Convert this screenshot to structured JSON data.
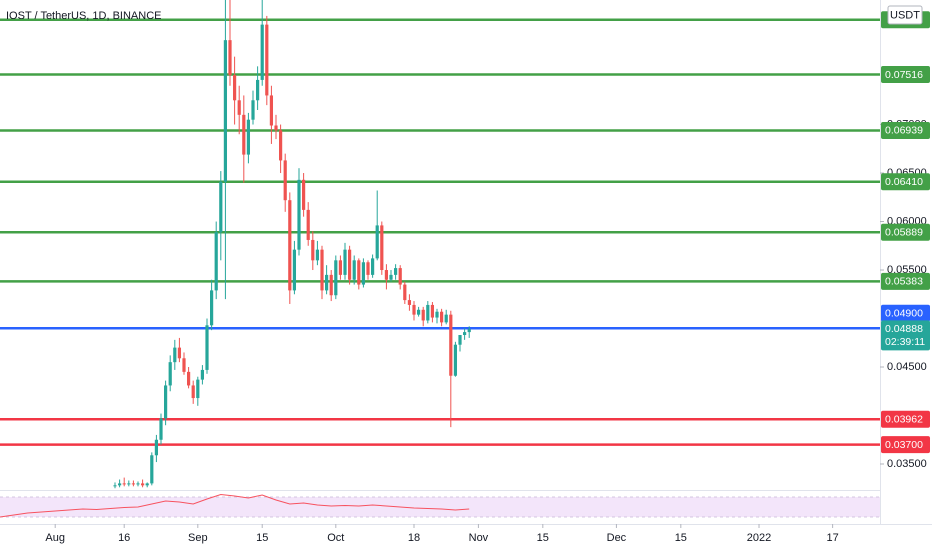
{
  "chart_data": {
    "type": "candlestick",
    "title": "IOST / TetherUS, 1D, BINANCE",
    "currency": "USDT",
    "up_color": "#26a69a",
    "down_color": "#ef5350",
    "x": [
      13,
      14,
      15,
      16,
      17,
      18,
      19,
      20,
      21,
      22,
      23,
      24,
      25,
      26,
      27,
      28,
      29,
      30,
      31,
      32,
      33,
      34,
      35,
      36,
      37,
      38,
      39,
      40,
      41,
      42,
      43,
      44,
      45,
      46,
      47,
      48,
      49,
      50,
      51,
      52,
      53,
      54,
      55,
      56,
      57,
      58,
      59,
      60,
      61,
      62,
      63,
      64,
      65,
      66,
      67,
      68,
      69,
      70,
      71,
      72,
      73,
      74,
      75,
      76,
      77,
      78,
      79,
      80,
      81,
      82,
      83,
      84,
      85,
      86,
      87,
      88,
      89,
      90
    ],
    "open": [
      0.0327,
      0.0328,
      0.033,
      0.0329,
      0.033,
      0.0329,
      0.033,
      0.0328,
      0.033,
      0.0359,
      0.0375,
      0.0397,
      0.0431,
      0.0455,
      0.047,
      0.0459,
      0.0445,
      0.0431,
      0.0418,
      0.0437,
      0.0447,
      0.0493,
      0.0529,
      0.0589,
      0.0641,
      0.0787,
      0.0751,
      0.0725,
      0.071,
      0.0669,
      0.0705,
      0.0725,
      0.0746,
      0.0803,
      0.073,
      0.0699,
      0.0694,
      0.0663,
      0.0622,
      0.0529,
      0.0571,
      0.0643,
      0.0612,
      0.0581,
      0.056,
      0.0571,
      0.0529,
      0.0545,
      0.0524,
      0.056,
      0.0545,
      0.0571,
      0.054,
      0.056,
      0.0535,
      0.0558,
      0.0545,
      0.0562,
      0.0596,
      0.055,
      0.054,
      0.0545,
      0.0552,
      0.0535,
      0.0519,
      0.0514,
      0.0504,
      0.0509,
      0.0498,
      0.0514,
      0.0501,
      0.0507,
      0.0496,
      0.0504,
      0.0441,
      0.0473,
      0.0483,
      0.0486
    ],
    "high": [
      0.0331,
      0.0334,
      0.0336,
      0.0333,
      0.0333,
      0.0332,
      0.0334,
      0.0331,
      0.0362,
      0.038,
      0.0402,
      0.0436,
      0.0462,
      0.0478,
      0.048,
      0.0465,
      0.045,
      0.0436,
      0.044,
      0.0452,
      0.05,
      0.054,
      0.06,
      0.0652,
      0.083,
      0.083,
      0.077,
      0.074,
      0.073,
      0.0712,
      0.0735,
      0.076,
      0.083,
      0.0812,
      0.074,
      0.071,
      0.07,
      0.067,
      0.063,
      0.058,
      0.0655,
      0.065,
      0.062,
      0.059,
      0.058,
      0.0575,
      0.0555,
      0.055,
      0.0565,
      0.0565,
      0.0578,
      0.0575,
      0.0565,
      0.0562,
      0.0562,
      0.056,
      0.0566,
      0.0632,
      0.06,
      0.0556,
      0.055,
      0.0556,
      0.0555,
      0.0538,
      0.0525,
      0.0518,
      0.0512,
      0.0512,
      0.0518,
      0.0517,
      0.051,
      0.051,
      0.0509,
      0.0508,
      0.0476,
      0.0478,
      0.049,
      0.0492
    ],
    "low": [
      0.0325,
      0.0326,
      0.0327,
      0.0327,
      0.0327,
      0.0327,
      0.0326,
      0.0326,
      0.0328,
      0.0352,
      0.037,
      0.039,
      0.0425,
      0.0447,
      0.0455,
      0.0442,
      0.0428,
      0.0412,
      0.041,
      0.0432,
      0.0443,
      0.0488,
      0.052,
      0.056,
      0.052,
      0.074,
      0.07,
      0.069,
      0.064,
      0.066,
      0.07,
      0.0715,
      0.074,
      0.072,
      0.068,
      0.0685,
      0.065,
      0.061,
      0.0515,
      0.0525,
      0.0565,
      0.0605,
      0.0575,
      0.055,
      0.0555,
      0.052,
      0.0525,
      0.0518,
      0.052,
      0.054,
      0.054,
      0.0535,
      0.0535,
      0.053,
      0.0532,
      0.054,
      0.0542,
      0.056,
      0.0545,
      0.053,
      0.0538,
      0.054,
      0.053,
      0.0515,
      0.0508,
      0.0498,
      0.0502,
      0.0492,
      0.0495,
      0.0496,
      0.0495,
      0.0492,
      0.0494,
      0.0388,
      0.044,
      0.0466,
      0.0478,
      0.048
    ],
    "close": [
      0.0328,
      0.033,
      0.0329,
      0.033,
      0.0329,
      0.033,
      0.0328,
      0.033,
      0.0359,
      0.0375,
      0.0397,
      0.0431,
      0.0455,
      0.047,
      0.0459,
      0.0445,
      0.0431,
      0.0418,
      0.0437,
      0.0447,
      0.0493,
      0.0529,
      0.0589,
      0.0641,
      0.0787,
      0.0751,
      0.0725,
      0.071,
      0.0669,
      0.0705,
      0.0725,
      0.0746,
      0.0803,
      0.073,
      0.0699,
      0.0694,
      0.0663,
      0.0622,
      0.0529,
      0.0571,
      0.0643,
      0.0612,
      0.0581,
      0.056,
      0.0571,
      0.0529,
      0.0545,
      0.0524,
      0.056,
      0.0545,
      0.0571,
      0.054,
      0.056,
      0.0535,
      0.0558,
      0.0545,
      0.0562,
      0.0596,
      0.055,
      0.054,
      0.0545,
      0.0552,
      0.0535,
      0.0519,
      0.0514,
      0.0504,
      0.0509,
      0.0498,
      0.0514,
      0.0501,
      0.0507,
      0.0496,
      0.0504,
      0.0441,
      0.0473,
      0.0483,
      0.0486,
      0.0489
    ],
    "xlim": [
      -12,
      179.3
    ],
    "xticks": [
      {
        "value": 0,
        "label": "Aug"
      },
      {
        "value": 15,
        "label": "16"
      },
      {
        "value": 31,
        "label": "Sep"
      },
      {
        "value": 45,
        "label": "15"
      },
      {
        "value": 61,
        "label": "Oct"
      },
      {
        "value": 78,
        "label": "18"
      },
      {
        "value": 92,
        "label": "Nov"
      },
      {
        "value": 106,
        "label": "15"
      },
      {
        "value": 122,
        "label": "Dec"
      },
      {
        "value": 136,
        "label": "15"
      },
      {
        "value": 153,
        "label": "2022"
      },
      {
        "value": 169,
        "label": "17"
      }
    ],
    "ylim": [
      0.03232,
      0.08284
    ],
    "yticks": [
      {
        "value": 0.035,
        "label": "0.03500"
      },
      {
        "value": 0.045,
        "label": "0.04500"
      },
      {
        "value": 0.055,
        "label": "0.05500"
      },
      {
        "value": 0.06,
        "label": "0.06000"
      },
      {
        "value": 0.065,
        "label": "0.06500"
      },
      {
        "value": 0.07,
        "label": "0.07000"
      }
    ],
    "levels": [
      {
        "value": 0.0808,
        "color": "#43a047"
      },
      {
        "value": 0.07516,
        "label": "0.07516",
        "color": "#43a047"
      },
      {
        "value": 0.06939,
        "label": "0.06939",
        "color": "#43a047"
      },
      {
        "value": 0.0641,
        "label": "0.06410",
        "color": "#43a047"
      },
      {
        "value": 0.05889,
        "label": "0.05889",
        "color": "#43a047"
      },
      {
        "value": 0.05383,
        "label": "0.05383",
        "color": "#43a047"
      },
      {
        "value": 0.049,
        "label": "0.04900",
        "color": "#2962ff"
      },
      {
        "value": 0.03962,
        "label": "0.03962",
        "color": "#f23645"
      },
      {
        "value": 0.037,
        "label": "0.03700",
        "color": "#f23645"
      }
    ],
    "last_price": {
      "value": 0.04888,
      "label": "0.04888",
      "countdown": "02:39:11",
      "color": "#26a69a"
    },
    "indicator": {
      "x": [
        -12,
        -9,
        -6,
        -3,
        0,
        3,
        6,
        9,
        12,
        15,
        18,
        21,
        24,
        27,
        30,
        33,
        36,
        39,
        42,
        45,
        48,
        51,
        54,
        57,
        60,
        63,
        66,
        69,
        72,
        75,
        78,
        81,
        84,
        87,
        90
      ],
      "values": [
        30,
        34,
        38,
        40,
        42,
        44,
        46,
        45,
        47,
        49,
        50,
        56,
        62,
        60,
        56,
        66,
        75,
        72,
        68,
        74,
        64,
        56,
        58,
        54,
        52,
        53,
        52,
        54,
        52,
        50,
        48,
        47,
        46,
        44,
        46
      ],
      "ylim": [
        20,
        84
      ],
      "band": [
        30,
        70
      ],
      "color": "#f7525f",
      "band_color": "#f3e5fa"
    }
  }
}
